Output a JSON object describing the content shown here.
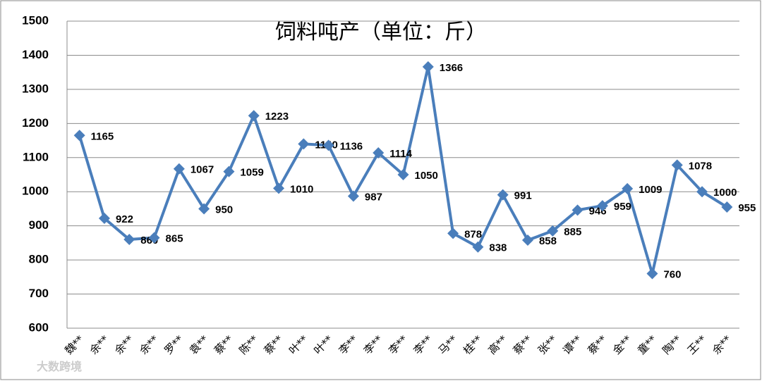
{
  "chart_data": {
    "type": "line",
    "title": "饲料吨产（单位：斤）",
    "categories": [
      "魏**",
      "余**",
      "余**",
      "余**",
      "罗**",
      "袁**",
      "蔡**",
      "陈**",
      "蔡**",
      "叶**",
      "叶**",
      "李**",
      "李**",
      "李**",
      "李**",
      "马**",
      "桂**",
      "高**",
      "蔡**",
      "张**",
      "谭**",
      "蔡**",
      "金**",
      "童**",
      "陶**",
      "王**",
      "余**"
    ],
    "series": [
      {
        "name": "饲料吨产",
        "color": "#4a7ebb",
        "values": [
          1165,
          922,
          860,
          865,
          1067,
          950,
          1059,
          1223,
          1010,
          1140,
          1136,
          987,
          1114,
          1050,
          1366,
          878,
          838,
          991,
          858,
          885,
          946,
          959,
          1009,
          760,
          1078,
          1000,
          955
        ]
      }
    ],
    "ylim": [
      600,
      1500
    ],
    "yticks": [
      600,
      700,
      800,
      900,
      1000,
      1100,
      1200,
      1300,
      1400,
      1500
    ],
    "grid": true,
    "watermark": "大数跨境"
  }
}
